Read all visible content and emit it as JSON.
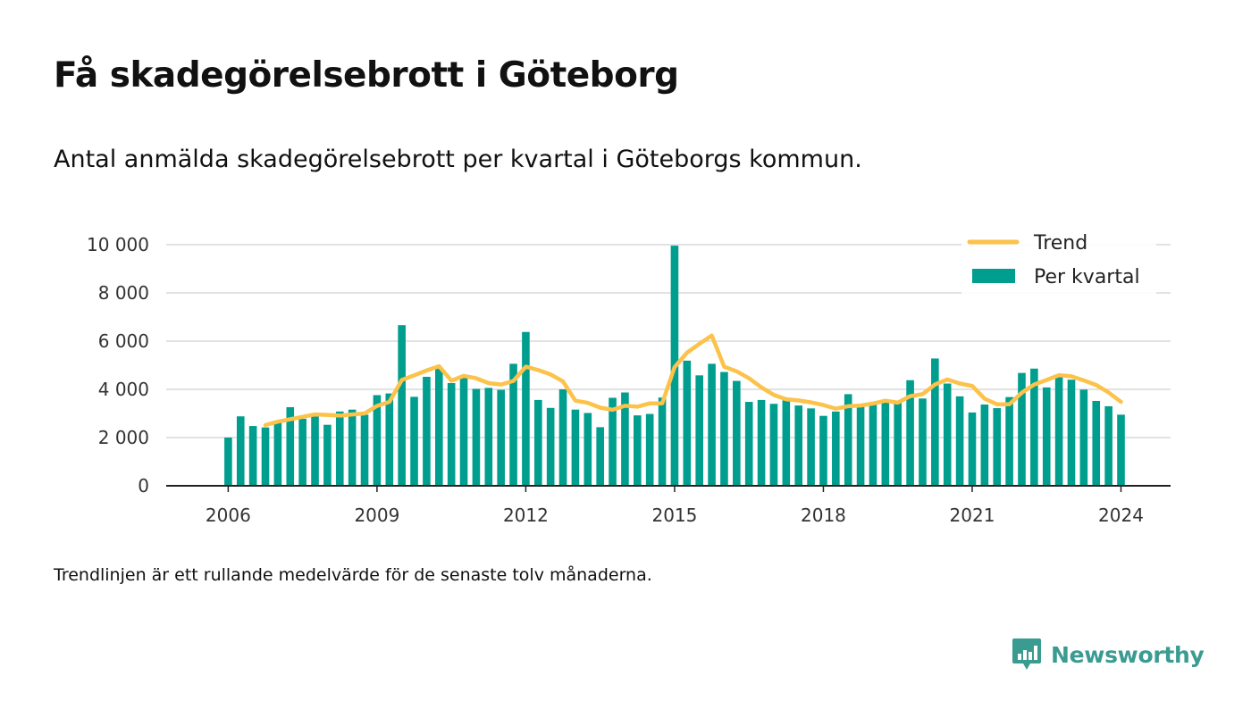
{
  "title": "Få skadegörelsebrott i Göteborg",
  "subtitle": "Antal anmälda skadegörelsebrott per kvartal i Göteborgs kommun.",
  "footnote": "Trendlinjen är ett rullande medelvärde för de senaste tolv månaderna.",
  "brand": {
    "name": "Newsworthy",
    "icon": "newsworthy-logo-icon",
    "color": "#3a9b91"
  },
  "colors": {
    "bars": "#009e8e",
    "trend": "#fcc24a",
    "grid": "#d8d8d8",
    "axis": "#222222"
  },
  "chart_data": {
    "type": "bar",
    "x_start": 2006.0,
    "x_step": 0.25,
    "xlim": [
      2004.75,
      2025.0
    ],
    "ylim": [
      0,
      10000
    ],
    "y_ticks": [
      0,
      2000,
      4000,
      6000,
      8000,
      10000
    ],
    "y_tick_labels": [
      "0",
      "2 000",
      "4 000",
      "6 000",
      "8 000",
      "10 000"
    ],
    "x_ticks": [
      2006,
      2009,
      2012,
      2015,
      2018,
      2021,
      2024
    ],
    "x_tick_labels": [
      "2006",
      "2009",
      "2012",
      "2015",
      "2018",
      "2021",
      "2024"
    ],
    "grid": true,
    "legend_position": "top-right",
    "series": [
      {
        "name": "Per kvartal",
        "type": "bar",
        "values": [
          2000,
          2880,
          2480,
          2420,
          2620,
          3260,
          2780,
          2870,
          2530,
          3080,
          3160,
          2950,
          3760,
          3830,
          6660,
          3690,
          4520,
          4880,
          4260,
          4500,
          4020,
          4060,
          3980,
          5060,
          6380,
          3560,
          3230,
          4000,
          3160,
          3020,
          2430,
          3650,
          3870,
          2920,
          2980,
          3660,
          9960,
          5190,
          4580,
          5060,
          4720,
          4350,
          3480,
          3560,
          3400,
          3540,
          3330,
          3210,
          2900,
          3080,
          3800,
          3290,
          3420,
          3530,
          3450,
          4380,
          3620,
          5280,
          4240,
          3710,
          3040,
          3370,
          3220,
          3680,
          4680,
          4860,
          4080,
          4550,
          4400,
          3990,
          3520,
          3300,
          2950
        ]
      },
      {
        "name": "Trend",
        "type": "line",
        "x_start": 2006.75,
        "values": [
          2520,
          2660,
          2760,
          2860,
          2960,
          2940,
          2910,
          2960,
          3000,
          3310,
          3480,
          4390,
          4580,
          4780,
          4960,
          4360,
          4560,
          4460,
          4260,
          4200,
          4350,
          4940,
          4800,
          4620,
          4330,
          3530,
          3440,
          3240,
          3150,
          3320,
          3280,
          3420,
          3420,
          4920,
          5520,
          5890,
          6230,
          4940,
          4750,
          4460,
          4080,
          3770,
          3590,
          3540,
          3460,
          3350,
          3200,
          3300,
          3330,
          3410,
          3530,
          3450,
          3720,
          3800,
          4200,
          4410,
          4240,
          4140,
          3610,
          3380,
          3380,
          3860,
          4200,
          4390,
          4590,
          4540,
          4370,
          4180,
          3870,
          3480
        ]
      }
    ]
  }
}
